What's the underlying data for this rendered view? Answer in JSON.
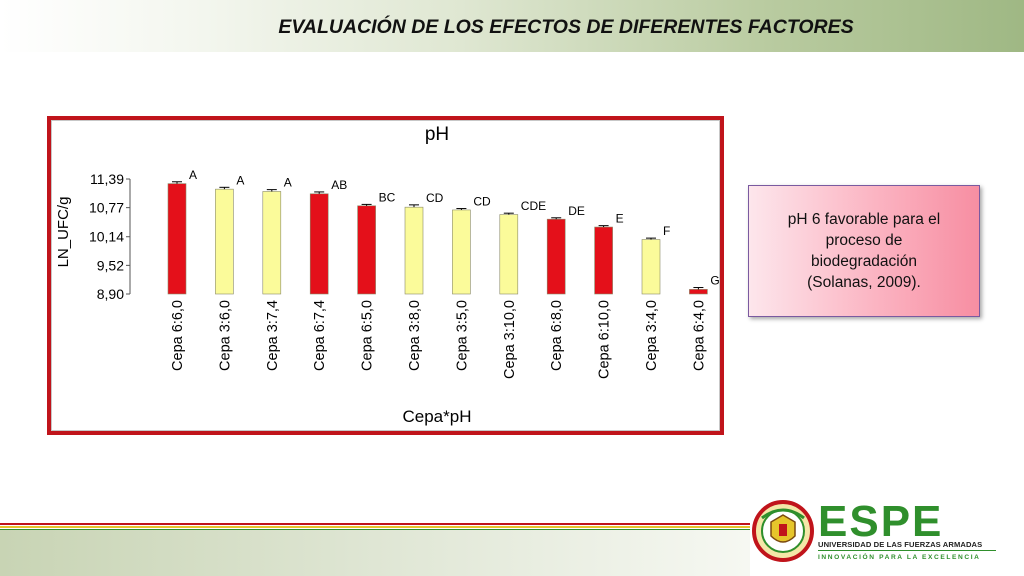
{
  "slide": {
    "title": "EVALUACIÓN DE LOS EFECTOS DE DIFERENTES FACTORES"
  },
  "note": {
    "text": "pH 6 favorable para el\nproceso de\nbiodegradación\n(Solanas, 2009)."
  },
  "logo": {
    "name": "ESPE",
    "university": "UNIVERSIDAD DE LAS FUERZAS ARMADAS",
    "motto": "INNOVACIÓN PARA LA EXCELENCIA",
    "seal_icon": "university-seal-icon"
  },
  "colors": {
    "accent_red": "#c0141b",
    "bar_red": "#e4101a",
    "bar_yellow": "#fbfb9a",
    "brand_green": "#2f8f2c"
  },
  "chart_data": {
    "type": "bar",
    "title": "pH",
    "xlabel": "Cepa*pH",
    "ylabel": "LN_UFC/g",
    "yticks": [
      "11,39",
      "10,77",
      "10,14",
      "9,52",
      "8,90"
    ],
    "ylim": [
      8.9,
      11.39
    ],
    "grid": false,
    "categories": [
      "Cepa 6:6,0",
      "Cepa 3:6,0",
      "Cepa 3:7,4",
      "Cepa 6:7,4",
      "Cepa 6:5,0",
      "Cepa 3:8,0",
      "Cepa 3:5,0",
      "Cepa 3:10,0",
      "Cepa 6:8,0",
      "Cepa 6:10,0",
      "Cepa 3:4,0",
      "Cepa 6:4,0"
    ],
    "values": [
      11.29,
      11.17,
      11.12,
      11.07,
      10.81,
      10.78,
      10.72,
      10.62,
      10.52,
      10.35,
      10.08,
      9.0
    ],
    "errors": [
      0.04,
      0.04,
      0.04,
      0.04,
      0.03,
      0.05,
      0.03,
      0.03,
      0.03,
      0.03,
      0.03,
      0.04
    ],
    "groups": [
      "A",
      "A",
      "A",
      "AB",
      "BC",
      "CD",
      "CD",
      "CDE",
      "DE",
      "E",
      "F",
      "G"
    ],
    "bar_colors": [
      "red",
      "yellow",
      "yellow",
      "red",
      "red",
      "yellow",
      "yellow",
      "yellow",
      "red",
      "red",
      "yellow",
      "red"
    ]
  }
}
